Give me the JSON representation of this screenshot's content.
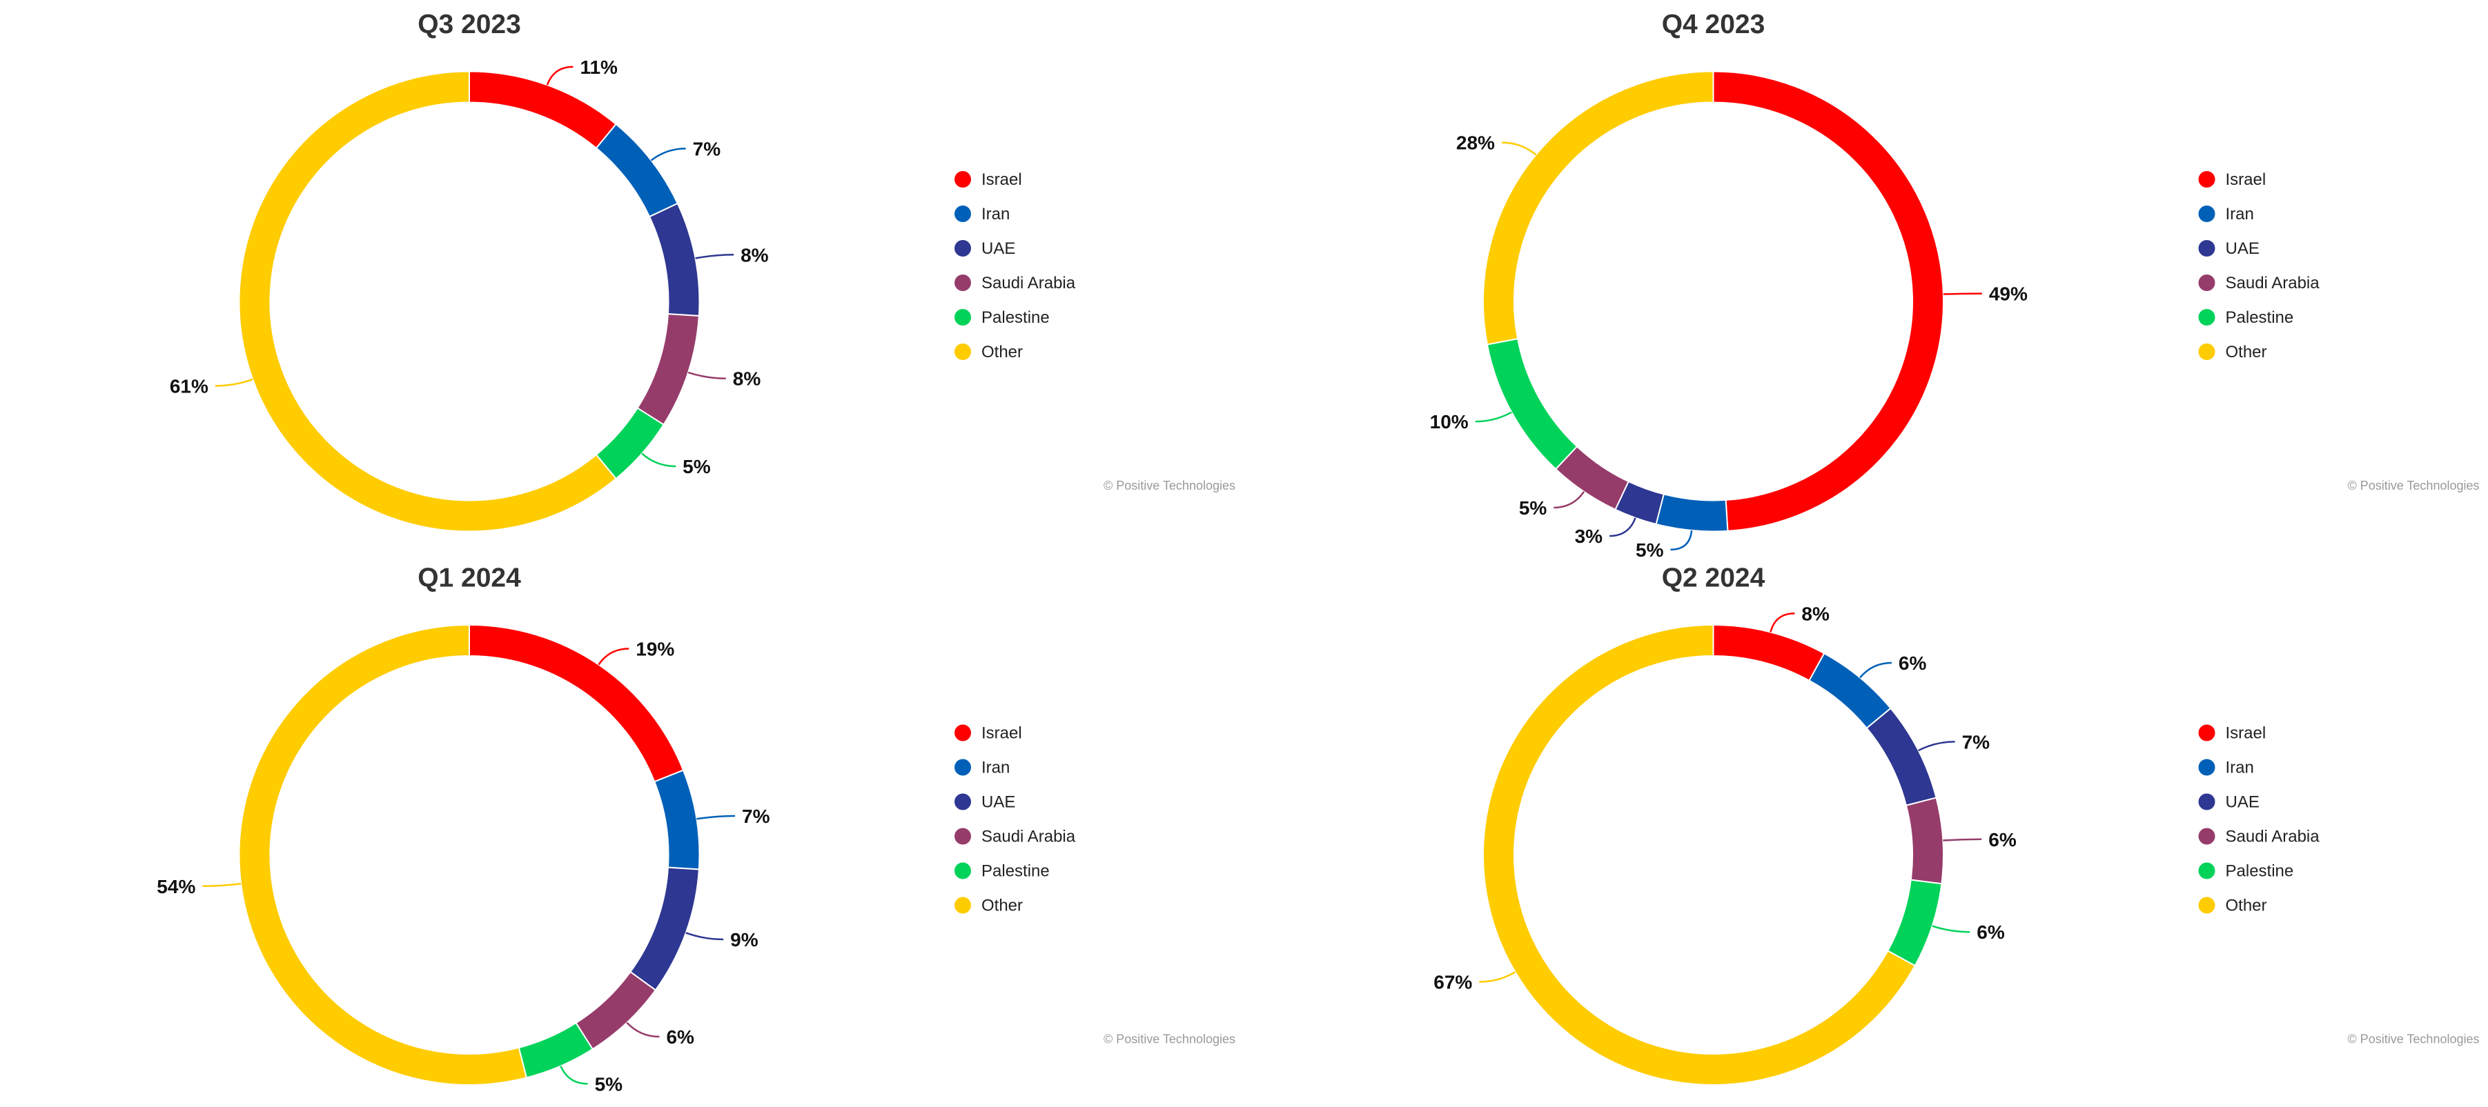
{
  "colors": {
    "Israel": "#ff0000",
    "Iran": "#0060b8",
    "UAE": "#2e3791",
    "Saudi Arabia": "#963c6b",
    "Palestine": "#00d25a",
    "Other": "#ffcc00"
  },
  "legend_items": [
    "Israel",
    "Iran",
    "UAE",
    "Saudi Arabia",
    "Palestine",
    "Other"
  ],
  "credit": "© Positive Technologies",
  "chart_data": [
    {
      "type": "pie",
      "title": "Q3 2023",
      "categories": [
        "Israel",
        "Iran",
        "UAE",
        "Saudi Arabia",
        "Palestine",
        "Other"
      ],
      "values": [
        11,
        7,
        8,
        8,
        5,
        61
      ],
      "labels": [
        "11%",
        "7%",
        "8%",
        "8%",
        "5%",
        "61%"
      ],
      "legend_position": "right"
    },
    {
      "type": "pie",
      "title": "Q4 2023",
      "categories": [
        "Israel",
        "Iran",
        "UAE",
        "Saudi Arabia",
        "Palestine",
        "Other"
      ],
      "values": [
        49,
        5,
        3,
        5,
        10,
        28
      ],
      "labels": [
        "49%",
        "5%",
        "3%",
        "5%",
        "10%",
        "28%"
      ],
      "legend_position": "right"
    },
    {
      "type": "pie",
      "title": "Q1 2024",
      "categories": [
        "Israel",
        "Iran",
        "UAE",
        "Saudi Arabia",
        "Palestine",
        "Other"
      ],
      "values": [
        19,
        7,
        9,
        6,
        5,
        54
      ],
      "labels": [
        "19%",
        "7%",
        "9%",
        "6%",
        "5%",
        "54%"
      ],
      "legend_position": "right"
    },
    {
      "type": "pie",
      "title": "Q2 2024",
      "categories": [
        "Israel",
        "Iran",
        "UAE",
        "Saudi Arabia",
        "Palestine",
        "Other"
      ],
      "values": [
        8,
        6,
        7,
        6,
        6,
        67
      ],
      "labels": [
        "8%",
        "6%",
        "7%",
        "6%",
        "6%",
        "67%"
      ],
      "legend_position": "right"
    }
  ]
}
